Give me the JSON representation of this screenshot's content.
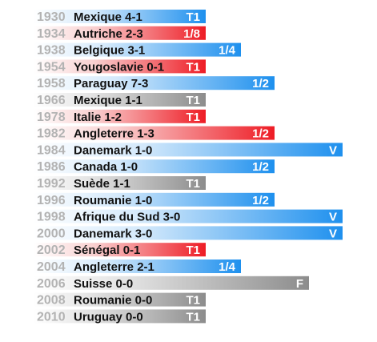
{
  "chart_data": {
    "type": "bar",
    "orientation": "horizontal",
    "colors": {
      "blue": "#1e90ee",
      "red": "#ee1c25",
      "gray": "#8c8c8c",
      "year_light": "#c8c8c8",
      "year_red_tint": "#f2b0b0"
    },
    "stage_scale": {
      "T1": 1,
      "1/8": 1,
      "1/4": 2,
      "1/2": 3,
      "F": 4,
      "V": 5
    },
    "rows": [
      {
        "year": "1930",
        "label": "Mexique 4-1",
        "result": "T1",
        "outcome": "win"
      },
      {
        "year": "1934",
        "label": "Autriche 2-3",
        "result": "1/8",
        "outcome": "loss"
      },
      {
        "year": "1938",
        "label": "Belgique 3-1",
        "result": "1/4",
        "outcome": "win"
      },
      {
        "year": "1954",
        "label": "Yougoslavie 0-1",
        "result": "T1",
        "outcome": "loss"
      },
      {
        "year": "1958",
        "label": "Paraguay 7-3",
        "result": "1/2",
        "outcome": "win"
      },
      {
        "year": "1966",
        "label": "Mexique 1-1",
        "result": "T1",
        "outcome": "draw"
      },
      {
        "year": "1978",
        "label": "Italie 1-2",
        "result": "T1",
        "outcome": "loss"
      },
      {
        "year": "1982",
        "label": "Angleterre 1-3",
        "result": "1/2",
        "outcome": "loss"
      },
      {
        "year": "1984",
        "label": "Danemark 1-0",
        "result": "V",
        "outcome": "win"
      },
      {
        "year": "1986",
        "label": "Canada 1-0",
        "result": "1/2",
        "outcome": "win"
      },
      {
        "year": "1992",
        "label": "Suède 1-1",
        "result": "T1",
        "outcome": "draw"
      },
      {
        "year": "1996",
        "label": "Roumanie 1-0",
        "result": "1/2",
        "outcome": "win"
      },
      {
        "year": "1998",
        "label": "Afrique du Sud 3-0",
        "result": "V",
        "outcome": "win"
      },
      {
        "year": "2000",
        "label": "Danemark 3-0",
        "result": "V",
        "outcome": "win"
      },
      {
        "year": "2002",
        "label": "Sénégal 0-1",
        "result": "T1",
        "outcome": "loss"
      },
      {
        "year": "2004",
        "label": "Angleterre 2-1",
        "result": "1/4",
        "outcome": "win"
      },
      {
        "year": "2006",
        "label": "Suisse 0-0",
        "result": "F",
        "outcome": "draw"
      },
      {
        "year": "2008",
        "label": "Roumanie 0-0",
        "result": "T1",
        "outcome": "draw"
      },
      {
        "year": "2010",
        "label": "Uruguay 0-0",
        "result": "T1",
        "outcome": "draw"
      }
    ]
  }
}
